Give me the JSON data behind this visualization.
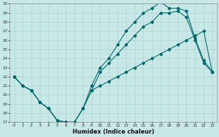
{
  "xlabel": "Humidex (Indice chaleur)",
  "bg_color": "#c8e8e8",
  "line_color": "#006868",
  "grid_color": "#a8cccc",
  "ylim": [
    17,
    30
  ],
  "xlim": [
    -0.5,
    23.5
  ],
  "yticks": [
    17,
    18,
    19,
    20,
    21,
    22,
    23,
    24,
    25,
    26,
    27,
    28,
    29,
    30
  ],
  "xticks": [
    0,
    1,
    2,
    3,
    4,
    5,
    6,
    7,
    8,
    9,
    10,
    11,
    12,
    13,
    14,
    15,
    16,
    17,
    18,
    19,
    20,
    21,
    22,
    23
  ],
  "line_min_x": [
    0,
    1,
    2,
    3,
    4,
    5,
    6,
    7,
    8,
    9,
    10,
    11,
    12,
    13,
    14,
    15,
    16,
    17,
    18,
    19,
    20,
    21,
    22,
    23
  ],
  "line_min_y": [
    22.0,
    21.0,
    20.5,
    19.2,
    18.5,
    17.2,
    17.0,
    17.0,
    18.5,
    20.5,
    21.0,
    21.5,
    22.0,
    22.5,
    23.0,
    23.5,
    24.0,
    24.5,
    25.0,
    25.5,
    26.0,
    26.5,
    27.0,
    22.5
  ],
  "line_mid_x": [
    0,
    1,
    2,
    3,
    4,
    5,
    6,
    7,
    8,
    9,
    10,
    11,
    12,
    13,
    14,
    15,
    16,
    17,
    18,
    19,
    20,
    21,
    22,
    23
  ],
  "line_mid_y": [
    22.0,
    21.0,
    20.5,
    19.2,
    18.5,
    17.2,
    17.0,
    17.0,
    18.5,
    20.5,
    22.5,
    23.5,
    24.5,
    25.5,
    26.5,
    27.5,
    28.0,
    29.0,
    29.0,
    29.2,
    28.5,
    26.0,
    23.5,
    22.5
  ],
  "line_max_x": [
    0,
    1,
    2,
    3,
    4,
    5,
    6,
    7,
    8,
    9,
    10,
    11,
    12,
    13,
    14,
    15,
    16,
    17,
    18,
    19,
    20,
    21,
    22,
    23
  ],
  "line_max_y": [
    22.0,
    21.0,
    20.5,
    19.2,
    18.5,
    17.2,
    17.0,
    17.0,
    18.5,
    21.0,
    23.0,
    24.0,
    25.5,
    27.0,
    28.0,
    29.0,
    29.5,
    30.2,
    29.5,
    29.5,
    29.2,
    26.2,
    23.8,
    22.5
  ]
}
